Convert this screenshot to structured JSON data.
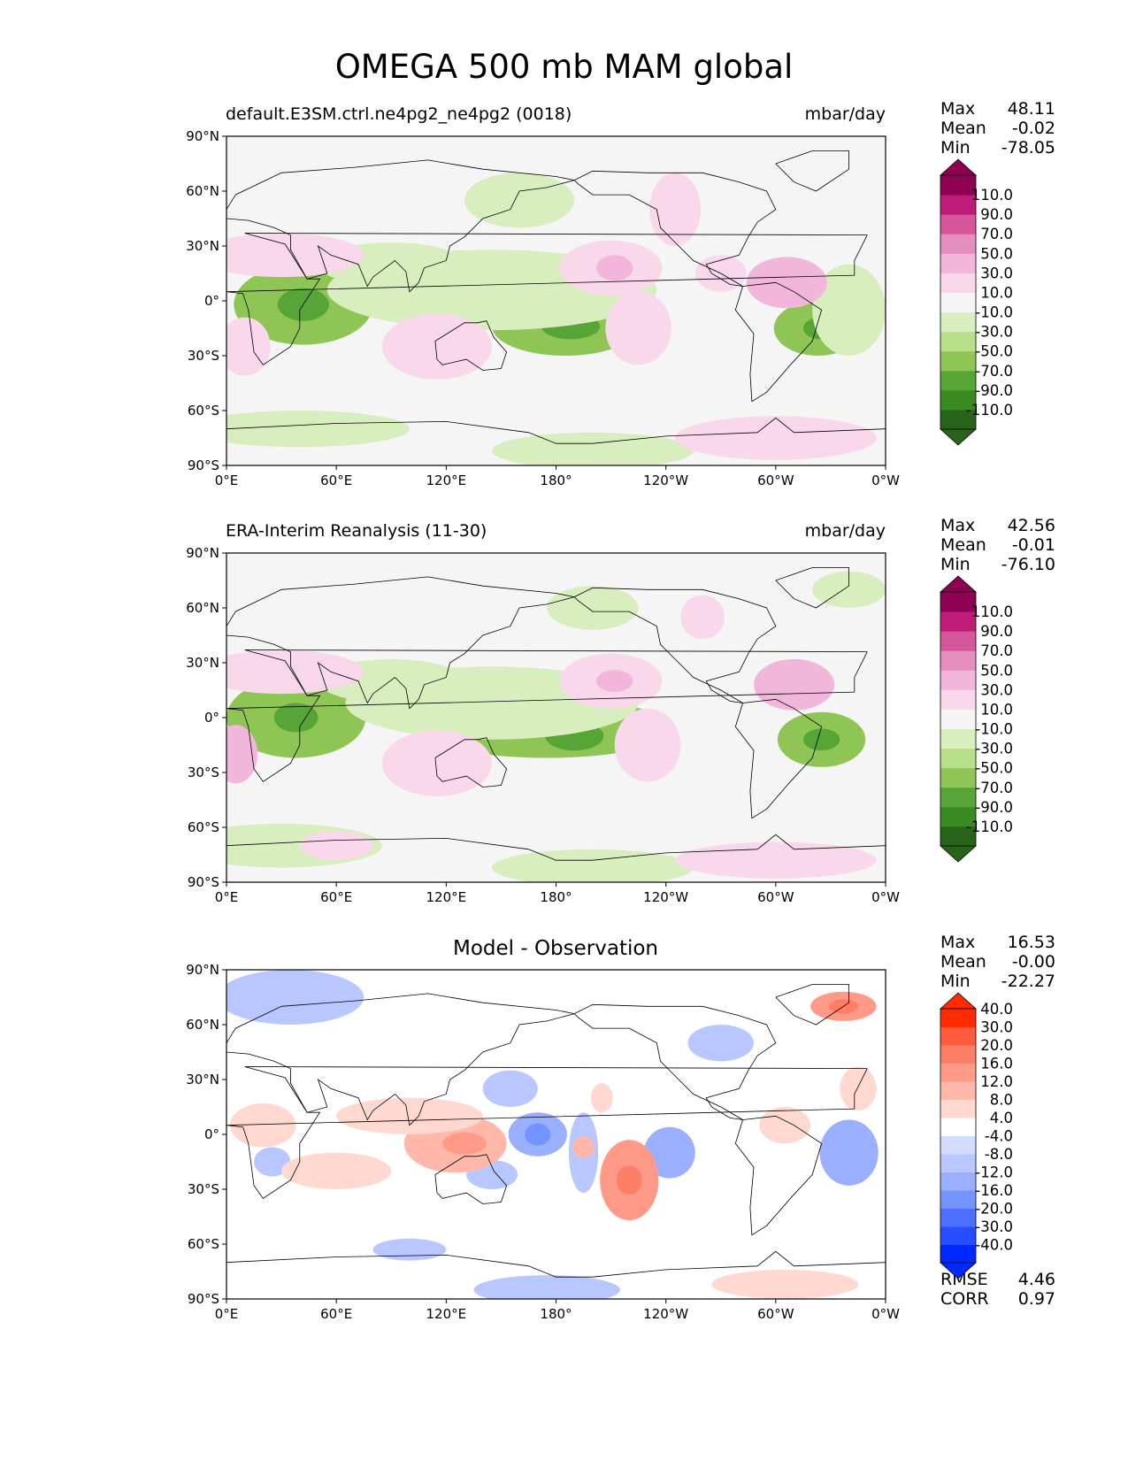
{
  "title": "OMEGA 500 mb MAM global",
  "axes": {
    "lat_ticks": [
      "90°N",
      "60°N",
      "30°N",
      "0°",
      "30°S",
      "60°S",
      "90°S"
    ],
    "lon_ticks": [
      "0°E",
      "60°E",
      "120°E",
      "180°",
      "120°W",
      "60°W",
      "0°W"
    ]
  },
  "panels": [
    {
      "id": "test",
      "title_left": "default.E3SM.ctrl.ne4pg2_ne4pg2 (0018)",
      "title_right": "mbar/day",
      "title_center": "",
      "stats": [
        {
          "label": "Max",
          "value": "48.11"
        },
        {
          "label": "Mean",
          "value": "-0.02"
        },
        {
          "label": "Min",
          "value": "-78.05"
        }
      ],
      "colorbar": {
        "colors": [
          "#276419",
          "#3a8a22",
          "#57a537",
          "#8fc555",
          "#b8df89",
          "#d9eebf",
          "#f5f5f5",
          "#f8d8ea",
          "#f1b6da",
          "#e58ebf",
          "#d6569c",
          "#bf1c79",
          "#8e0152"
        ],
        "labels": [
          "-110.0",
          "-90.0",
          "-70.0",
          "-50.0",
          "-30.0",
          "-10.0",
          "10.0",
          "30.0",
          "50.0",
          "70.0",
          "90.0",
          "110.0"
        ]
      },
      "background": "#f5f5f5",
      "anomalies": [
        {
          "lon": 42,
          "lat": -2,
          "r": 38,
          "ry": 22,
          "level": "neg3"
        },
        {
          "lon": 42,
          "lat": -2,
          "r": 14,
          "ry": 9,
          "level": "neg4"
        },
        {
          "lon": 185,
          "lat": -14,
          "r": 40,
          "ry": 16,
          "level": "neg3"
        },
        {
          "lon": 188,
          "lat": -14,
          "r": 16,
          "ry": 7,
          "level": "neg4"
        },
        {
          "lon": 158,
          "lat": 0,
          "r": 20,
          "ry": 12,
          "level": "neg3"
        },
        {
          "lon": 145,
          "lat": 6,
          "r": 90,
          "ry": 22,
          "level": "neg1"
        },
        {
          "lon": 323,
          "lat": -15,
          "r": 24,
          "ry": 15,
          "level": "neg3"
        },
        {
          "lon": 325,
          "lat": -15,
          "r": 10,
          "ry": 6,
          "level": "neg4"
        },
        {
          "lon": 90,
          "lat": 20,
          "r": 40,
          "ry": 12,
          "level": "neg1"
        },
        {
          "lon": 160,
          "lat": 55,
          "r": 30,
          "ry": 15,
          "level": "neg1"
        },
        {
          "lon": 40,
          "lat": -70,
          "r": 60,
          "ry": 10,
          "level": "neg1"
        },
        {
          "lon": 200,
          "lat": -82,
          "r": 55,
          "ry": 10,
          "level": "neg1"
        },
        {
          "lon": 340,
          "lat": -5,
          "r": 20,
          "ry": 25,
          "level": "neg1"
        },
        {
          "lon": 210,
          "lat": 18,
          "r": 28,
          "ry": 15,
          "level": "pos1"
        },
        {
          "lon": 212,
          "lat": 18,
          "r": 10,
          "ry": 7,
          "level": "pos2"
        },
        {
          "lon": 306,
          "lat": 10,
          "r": 22,
          "ry": 14,
          "level": "pos2"
        },
        {
          "lon": 30,
          "lat": 25,
          "r": 45,
          "ry": 12,
          "level": "pos1"
        },
        {
          "lon": 10,
          "lat": -25,
          "r": 14,
          "ry": 16,
          "level": "pos1"
        },
        {
          "lon": 115,
          "lat": -25,
          "r": 30,
          "ry": 18,
          "level": "pos1"
        },
        {
          "lon": 225,
          "lat": -15,
          "r": 18,
          "ry": 20,
          "level": "pos1"
        },
        {
          "lon": 300,
          "lat": -75,
          "r": 55,
          "ry": 12,
          "level": "pos1"
        },
        {
          "lon": 245,
          "lat": 50,
          "r": 14,
          "ry": 20,
          "level": "pos1"
        },
        {
          "lon": 270,
          "lat": 15,
          "r": 14,
          "ry": 10,
          "level": "pos1"
        }
      ]
    },
    {
      "id": "ref",
      "title_left": "ERA-Interim Reanalysis (11-30)",
      "title_right": "mbar/day",
      "title_center": "",
      "stats": [
        {
          "label": "Max",
          "value": "42.56"
        },
        {
          "label": "Mean",
          "value": "-0.01"
        },
        {
          "label": "Min",
          "value": "-76.10"
        }
      ],
      "colorbar": {
        "colors": [
          "#276419",
          "#3a8a22",
          "#57a537",
          "#8fc555",
          "#b8df89",
          "#d9eebf",
          "#f5f5f5",
          "#f8d8ea",
          "#f1b6da",
          "#e58ebf",
          "#d6569c",
          "#bf1c79",
          "#8e0152"
        ],
        "labels": [
          "-110.0",
          "-90.0",
          "-70.0",
          "-50.0",
          "-30.0",
          "-10.0",
          "10.0",
          "30.0",
          "50.0",
          "70.0",
          "90.0",
          "110.0"
        ]
      },
      "background": "#f5f5f5",
      "anomalies": [
        {
          "lon": 38,
          "lat": 0,
          "r": 38,
          "ry": 22,
          "level": "neg3"
        },
        {
          "lon": 38,
          "lat": 0,
          "r": 12,
          "ry": 8,
          "level": "neg4"
        },
        {
          "lon": 175,
          "lat": -6,
          "r": 70,
          "ry": 16,
          "level": "neg3"
        },
        {
          "lon": 190,
          "lat": -10,
          "r": 16,
          "ry": 8,
          "level": "neg4"
        },
        {
          "lon": 145,
          "lat": 8,
          "r": 80,
          "ry": 20,
          "level": "neg1"
        },
        {
          "lon": 325,
          "lat": -12,
          "r": 24,
          "ry": 15,
          "level": "neg3"
        },
        {
          "lon": 325,
          "lat": -12,
          "r": 10,
          "ry": 6,
          "level": "neg4"
        },
        {
          "lon": 90,
          "lat": 20,
          "r": 40,
          "ry": 12,
          "level": "neg1"
        },
        {
          "lon": 200,
          "lat": 60,
          "r": 25,
          "ry": 12,
          "level": "neg1"
        },
        {
          "lon": 30,
          "lat": -70,
          "r": 55,
          "ry": 12,
          "level": "neg1"
        },
        {
          "lon": 200,
          "lat": -82,
          "r": 55,
          "ry": 10,
          "level": "neg1"
        },
        {
          "lon": 340,
          "lat": 70,
          "r": 20,
          "ry": 10,
          "level": "neg1"
        },
        {
          "lon": 210,
          "lat": 20,
          "r": 28,
          "ry": 15,
          "level": "pos1"
        },
        {
          "lon": 212,
          "lat": 20,
          "r": 10,
          "ry": 6,
          "level": "pos2"
        },
        {
          "lon": 310,
          "lat": 18,
          "r": 22,
          "ry": 14,
          "level": "pos2"
        },
        {
          "lon": 30,
          "lat": 25,
          "r": 45,
          "ry": 12,
          "level": "pos1"
        },
        {
          "lon": 5,
          "lat": -20,
          "r": 12,
          "ry": 16,
          "level": "pos2"
        },
        {
          "lon": 115,
          "lat": -25,
          "r": 30,
          "ry": 18,
          "level": "pos1"
        },
        {
          "lon": 230,
          "lat": -15,
          "r": 18,
          "ry": 20,
          "level": "pos1"
        },
        {
          "lon": 300,
          "lat": -78,
          "r": 55,
          "ry": 10,
          "level": "pos1"
        },
        {
          "lon": 260,
          "lat": 55,
          "r": 12,
          "ry": 12,
          "level": "pos1"
        },
        {
          "lon": 60,
          "lat": -70,
          "r": 20,
          "ry": 8,
          "level": "pos1"
        }
      ]
    },
    {
      "id": "diff",
      "title_left": "",
      "title_right": "",
      "title_center": "Model - Observation",
      "stats": [
        {
          "label": "Max",
          "value": "16.53"
        },
        {
          "label": "Mean",
          "value": "-0.00"
        },
        {
          "label": "Min",
          "value": "-22.27"
        }
      ],
      "footer_stats": [
        {
          "label": "RMSE",
          "value": "4.46"
        },
        {
          "label": "CORR",
          "value": "0.97"
        }
      ],
      "colorbar": {
        "colors": [
          "#0029ff",
          "#264dff",
          "#4d6eff",
          "#7393ff",
          "#9aafff",
          "#b8c7ff",
          "#d3dcff",
          "#ffffff",
          "#ffd9d0",
          "#ffb8aa",
          "#ff9a88",
          "#ff7e66",
          "#ff5c3d",
          "#ff2b00"
        ],
        "labels": [
          "-40.0",
          "-30.0",
          "-20.0",
          "-16.0",
          "-12.0",
          "-8.0",
          "-4.0",
          "4.0",
          "8.0",
          "12.0",
          "16.0",
          "20.0",
          "30.0",
          "40.0"
        ]
      },
      "background": "#ffffff",
      "anomalies": [
        {
          "lon": 170,
          "lat": 0,
          "r": 16,
          "ry": 12,
          "level": "neg2"
        },
        {
          "lon": 170,
          "lat": 0,
          "r": 7,
          "ry": 6,
          "level": "neg3"
        },
        {
          "lon": 242,
          "lat": -10,
          "r": 14,
          "ry": 14,
          "level": "neg2"
        },
        {
          "lon": 195,
          "lat": -10,
          "r": 8,
          "ry": 22,
          "level": "neg1"
        },
        {
          "lon": 340,
          "lat": -10,
          "r": 16,
          "ry": 18,
          "level": "neg2"
        },
        {
          "lon": 35,
          "lat": 75,
          "r": 40,
          "ry": 15,
          "level": "neg1"
        },
        {
          "lon": 175,
          "lat": -85,
          "r": 40,
          "ry": 8,
          "level": "neg1"
        },
        {
          "lon": 100,
          "lat": -63,
          "r": 20,
          "ry": 6,
          "level": "neg1"
        },
        {
          "lon": 155,
          "lat": 25,
          "r": 15,
          "ry": 10,
          "level": "neg1"
        },
        {
          "lon": 25,
          "lat": -15,
          "r": 10,
          "ry": 8,
          "level": "neg1"
        },
        {
          "lon": 145,
          "lat": -22,
          "r": 14,
          "ry": 8,
          "level": "neg1"
        },
        {
          "lon": 270,
          "lat": 50,
          "r": 18,
          "ry": 10,
          "level": "neg1"
        },
        {
          "lon": 125,
          "lat": -5,
          "r": 28,
          "ry": 16,
          "level": "pos2"
        },
        {
          "lon": 130,
          "lat": -5,
          "r": 12,
          "ry": 6,
          "level": "pos3"
        },
        {
          "lon": 220,
          "lat": -25,
          "r": 16,
          "ry": 22,
          "level": "pos3"
        },
        {
          "lon": 220,
          "lat": -25,
          "r": 7,
          "ry": 8,
          "level": "pos4"
        },
        {
          "lon": 337,
          "lat": 70,
          "r": 18,
          "ry": 8,
          "level": "pos3"
        },
        {
          "lon": 337,
          "lat": 70,
          "r": 8,
          "ry": 4,
          "level": "pos4"
        },
        {
          "lon": 100,
          "lat": 10,
          "r": 40,
          "ry": 10,
          "level": "pos1"
        },
        {
          "lon": 20,
          "lat": 5,
          "r": 18,
          "ry": 12,
          "level": "pos1"
        },
        {
          "lon": 60,
          "lat": -20,
          "r": 30,
          "ry": 10,
          "level": "pos1"
        },
        {
          "lon": 305,
          "lat": 5,
          "r": 14,
          "ry": 10,
          "level": "pos1"
        },
        {
          "lon": 305,
          "lat": -82,
          "r": 40,
          "ry": 8,
          "level": "pos1"
        },
        {
          "lon": 345,
          "lat": 25,
          "r": 10,
          "ry": 12,
          "level": "pos1"
        },
        {
          "lon": 205,
          "lat": 20,
          "r": 6,
          "ry": 8,
          "level": "pos1"
        },
        {
          "lon": 195,
          "lat": -7,
          "r": 6,
          "ry": 6,
          "level": "pos2"
        }
      ]
    }
  ]
}
